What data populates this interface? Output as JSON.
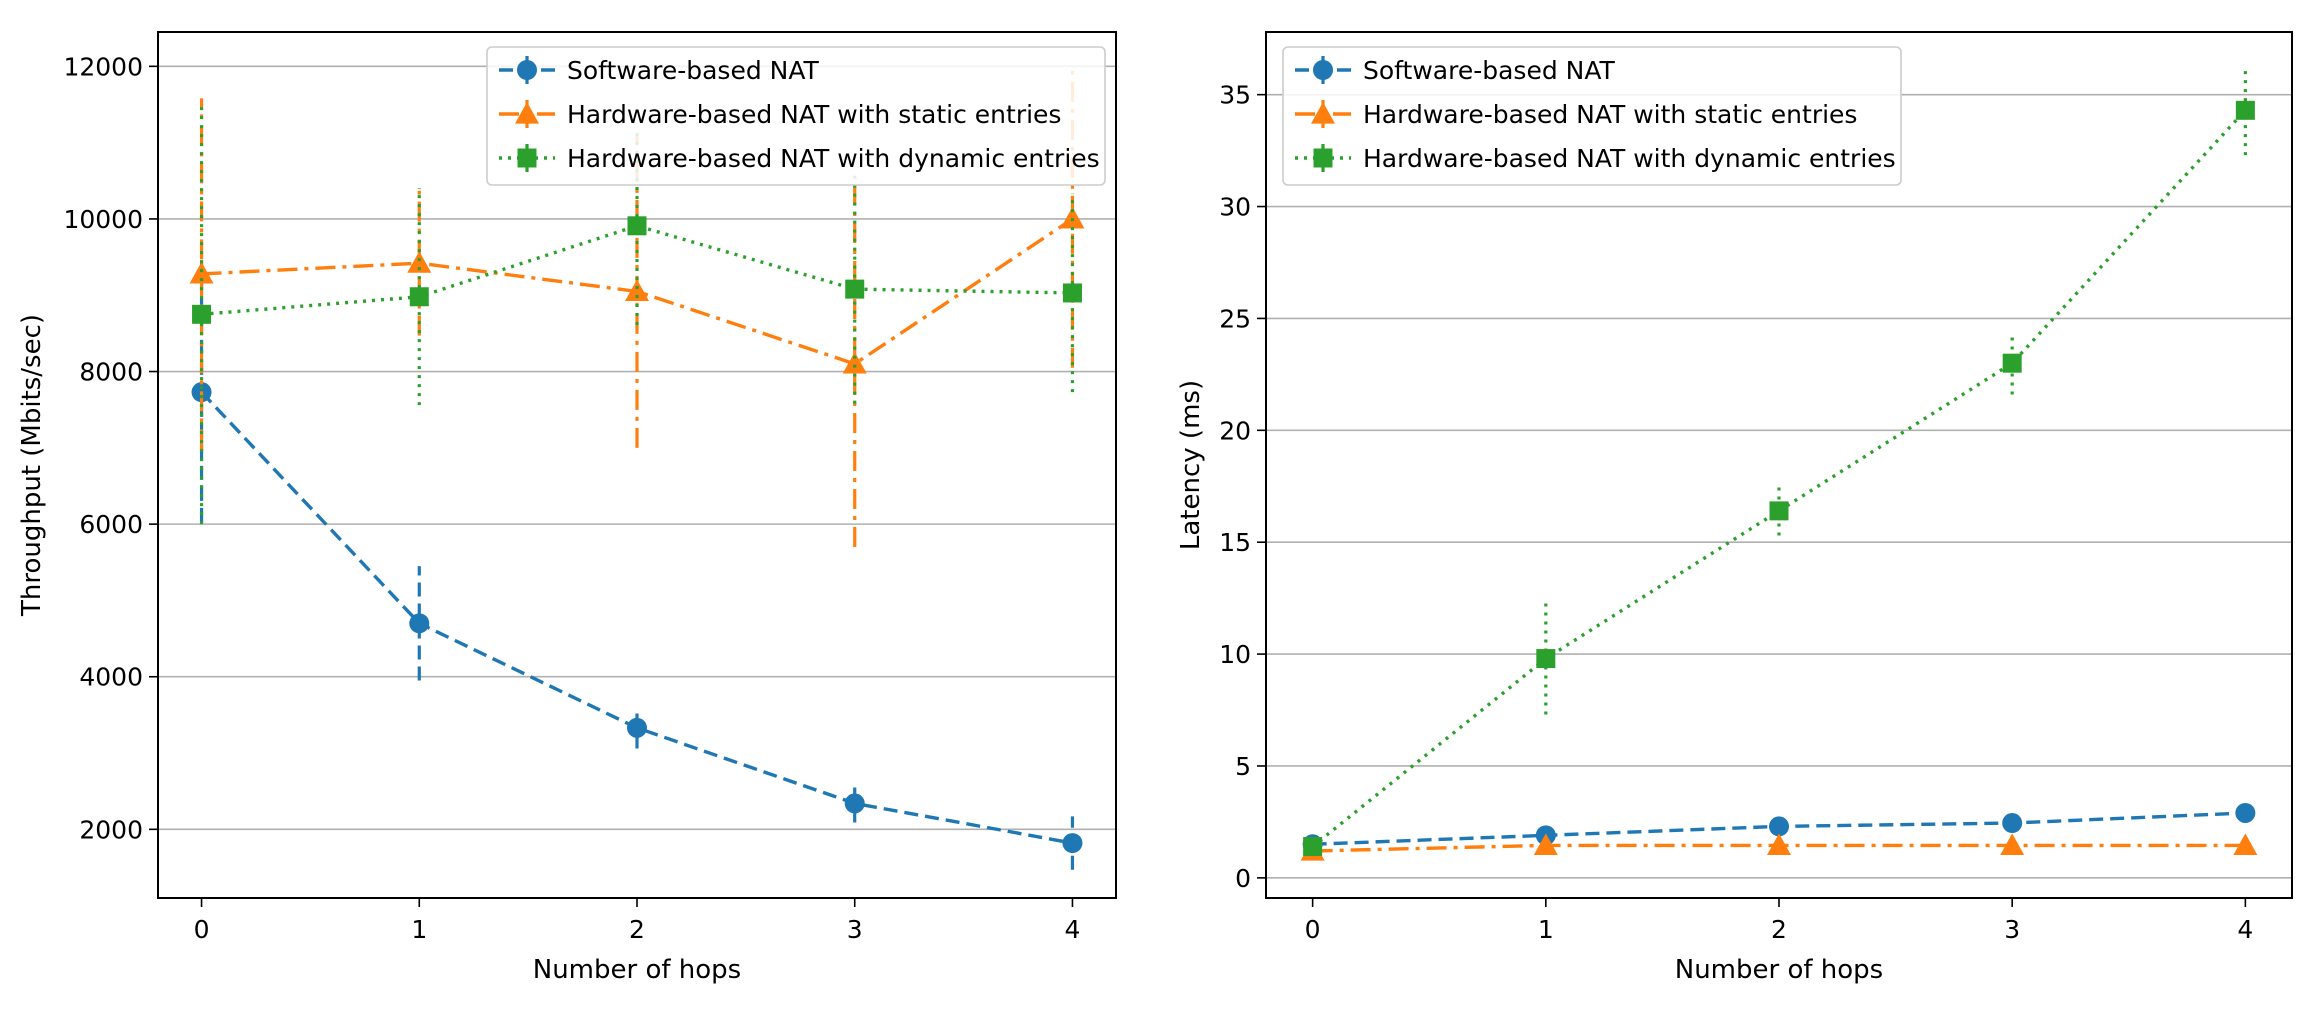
{
  "chart_data": [
    {
      "type": "line",
      "xlabel": "Number of hops",
      "ylabel": "Throughput (Mbits/sec)",
      "x": [
        0,
        1,
        2,
        3,
        4
      ],
      "xlim": [
        -0.2,
        4.2
      ],
      "ylim": [
        1100,
        12450
      ],
      "xticks": [
        "0",
        "1",
        "2",
        "3",
        "4"
      ],
      "yticks": [
        2000,
        4000,
        6000,
        8000,
        10000,
        12000
      ],
      "yticklabels": [
        "2000",
        "4000",
        "6000",
        "8000",
        "10000",
        "12000"
      ],
      "grid": "horizontal",
      "legend_placement": "top-right",
      "series": [
        {
          "name": "Software-based NAT",
          "color": "#1f77b4",
          "marker": "circle",
          "linestyle": "dashed",
          "values": [
            7730,
            4700,
            3330,
            2340,
            1820
          ],
          "errors": [
            1700,
            750,
            270,
            250,
            350
          ]
        },
        {
          "name": "Hardware-based NAT with static entries",
          "color": "#ff7f0e",
          "marker": "triangle",
          "linestyle": "dashdot",
          "values": [
            9280,
            9420,
            9050,
            8100,
            10000
          ],
          "errors": [
            2300,
            950,
            2050,
            2400,
            1950
          ]
        },
        {
          "name": "Hardware-based NAT with dynamic entries",
          "color": "#2ca02c",
          "marker": "square",
          "linestyle": "dotted",
          "values": [
            8750,
            8980,
            9910,
            9080,
            9030
          ],
          "errors": [
            2750,
            1420,
            1300,
            1500,
            1300
          ]
        }
      ]
    },
    {
      "type": "line",
      "xlabel": "Number of hops",
      "ylabel": "Latency (ms)",
      "x": [
        0,
        1,
        2,
        3,
        4
      ],
      "xlim": [
        -0.2,
        4.2
      ],
      "ylim": [
        -0.9,
        37.8
      ],
      "xticks": [
        "0",
        "1",
        "2",
        "3",
        "4"
      ],
      "yticks": [
        0,
        5,
        10,
        15,
        20,
        25,
        30,
        35
      ],
      "yticklabels": [
        "0",
        "5",
        "10",
        "15",
        "20",
        "25",
        "30",
        "35"
      ],
      "grid": "horizontal",
      "legend_placement": "top-left",
      "series": [
        {
          "name": "Software-based NAT",
          "color": "#1f77b4",
          "marker": "circle",
          "linestyle": "dashed",
          "values": [
            1.5,
            1.9,
            2.3,
            2.45,
            2.9
          ],
          "errors": [
            0.15,
            0.15,
            0.15,
            0.15,
            0.15
          ]
        },
        {
          "name": "Hardware-based NAT with static entries",
          "color": "#ff7f0e",
          "marker": "triangle",
          "linestyle": "dashdot",
          "values": [
            1.2,
            1.45,
            1.45,
            1.45,
            1.45
          ],
          "errors": [
            0.1,
            0.1,
            0.1,
            0.1,
            0.1
          ]
        },
        {
          "name": "Hardware-based NAT with dynamic entries",
          "color": "#2ca02c",
          "marker": "square",
          "linestyle": "dotted",
          "values": [
            1.4,
            9.8,
            16.4,
            23.0,
            34.3
          ],
          "errors": [
            0.4,
            2.5,
            1.1,
            1.4,
            2.0
          ]
        }
      ]
    }
  ]
}
